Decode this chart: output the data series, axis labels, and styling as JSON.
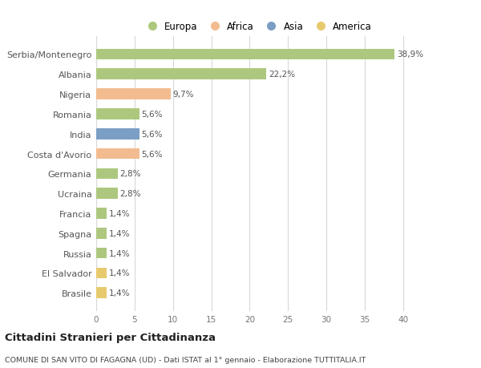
{
  "categories": [
    "Serbia/Montenegro",
    "Albania",
    "Nigeria",
    "Romania",
    "India",
    "Costa d'Avorio",
    "Germania",
    "Ucraina",
    "Francia",
    "Spagna",
    "Russia",
    "El Salvador",
    "Brasile"
  ],
  "values": [
    38.9,
    22.2,
    9.7,
    5.6,
    5.6,
    5.6,
    2.8,
    2.8,
    1.4,
    1.4,
    1.4,
    1.4,
    1.4
  ],
  "labels": [
    "38,9%",
    "22,2%",
    "9,7%",
    "5,6%",
    "5,6%",
    "5,6%",
    "2,8%",
    "2,8%",
    "1,4%",
    "1,4%",
    "1,4%",
    "1,4%",
    "1,4%"
  ],
  "colors": [
    "#adc87e",
    "#adc87e",
    "#f2bc90",
    "#adc87e",
    "#7b9ec4",
    "#f2bc90",
    "#adc87e",
    "#adc87e",
    "#adc87e",
    "#adc87e",
    "#adc87e",
    "#e8ca6e",
    "#e8ca6e"
  ],
  "legend": [
    {
      "label": "Europa",
      "color": "#adc87e"
    },
    {
      "label": "Africa",
      "color": "#f2bc90"
    },
    {
      "label": "Asia",
      "color": "#7b9ec4"
    },
    {
      "label": "America",
      "color": "#e8ca6e"
    }
  ],
  "xlim": [
    0,
    42
  ],
  "xticks": [
    0,
    5,
    10,
    15,
    20,
    25,
    30,
    35,
    40
  ],
  "title": "Cittadini Stranieri per Cittadinanza",
  "subtitle": "COMUNE DI SAN VITO DI FAGAGNA (UD) - Dati ISTAT al 1° gennaio - Elaborazione TUTTITALIA.IT",
  "background_color": "#ffffff",
  "grid_color": "#d8d8d8",
  "bar_height": 0.55,
  "label_fontsize": 7.5,
  "ytick_fontsize": 8,
  "xtick_fontsize": 7.5
}
